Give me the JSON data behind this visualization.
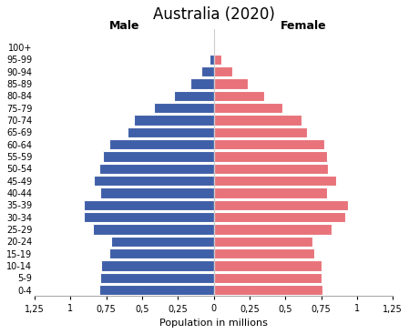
{
  "title": "Australia (2020)",
  "xlabel": "Population in millions",
  "male_label": "Male",
  "female_label": "Female",
  "age_groups": [
    "0-4",
    "5-9",
    "10-14",
    "15-19",
    "20-24",
    "25-29",
    "30-34",
    "35-39",
    "40-44",
    "45-49",
    "50-54",
    "55-59",
    "60-64",
    "65-69",
    "70-74",
    "75-79",
    "80-84",
    "85-89",
    "90-94",
    "95-99",
    "100+"
  ],
  "male_values": [
    0.8,
    0.79,
    0.785,
    0.73,
    0.715,
    0.845,
    0.91,
    0.91,
    0.79,
    0.84,
    0.8,
    0.775,
    0.73,
    0.6,
    0.555,
    0.415,
    0.275,
    0.165,
    0.085,
    0.028,
    0.004
  ],
  "female_values": [
    0.76,
    0.755,
    0.75,
    0.7,
    0.69,
    0.82,
    0.92,
    0.94,
    0.79,
    0.855,
    0.8,
    0.79,
    0.77,
    0.65,
    0.615,
    0.48,
    0.35,
    0.24,
    0.13,
    0.05,
    0.01
  ],
  "male_color": "#3f5fa8",
  "female_color": "#e8737a",
  "background_color": "#ffffff",
  "xlim": 1.25,
  "bar_height": 0.85,
  "title_fontsize": 12,
  "label_fontsize": 9,
  "tick_fontsize": 7,
  "axis_label_fontsize": 8,
  "xtick_vals": [
    -1.25,
    -1.0,
    -0.75,
    -0.5,
    -0.25,
    0,
    0.25,
    0.5,
    0.75,
    1.0,
    1.25
  ],
  "xtick_labels": [
    "1,25",
    "1",
    "0,75",
    "0,5",
    "0,25",
    "0",
    "0,25",
    "0,5",
    "0,75",
    "1",
    "1,25"
  ]
}
